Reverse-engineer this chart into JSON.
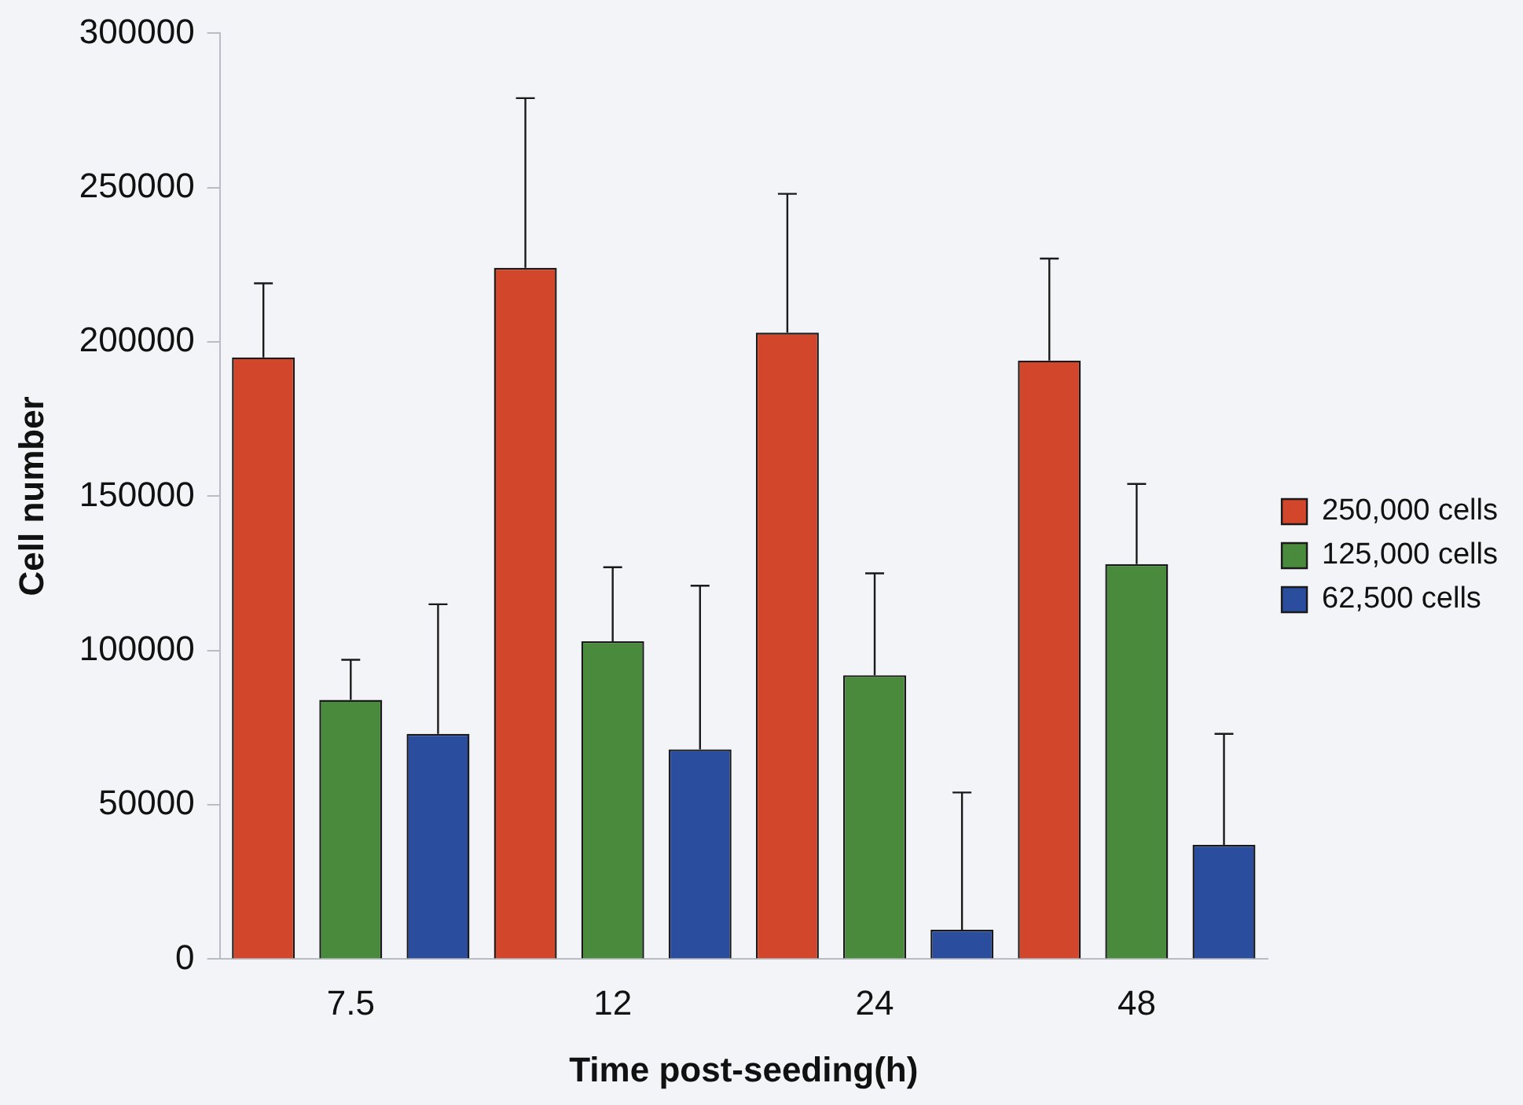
{
  "chart_data": {
    "type": "bar",
    "xlabel": "Time post-seeding(h)",
    "ylabel": "Cell number",
    "categories": [
      "7.5",
      "12",
      "24",
      "48"
    ],
    "series": [
      {
        "name": "250,000 cells",
        "color": "#d2472c",
        "values": [
          195000,
          224000,
          203000,
          194000
        ],
        "errors": [
          [
            195000,
            219000
          ],
          [
            224000,
            279000
          ],
          [
            203000,
            248000
          ],
          [
            194000,
            227000
          ]
        ]
      },
      {
        "name": "125,000 cells",
        "color": "#4a8a3c",
        "values": [
          84000,
          103000,
          92000,
          128000
        ],
        "errors": [
          [
            84000,
            97000
          ],
          [
            103000,
            127000
          ],
          [
            92000,
            125000
          ],
          [
            128000,
            154000
          ]
        ]
      },
      {
        "name": "62,500 cells",
        "color": "#2a4d9e",
        "values": [
          73000,
          68000,
          9500,
          37000
        ],
        "errors": [
          [
            73000,
            115000
          ],
          [
            68000,
            121000
          ],
          [
            9500,
            54000
          ],
          [
            37000,
            73000
          ]
        ]
      }
    ],
    "ylim": [
      0,
      300000
    ],
    "yticks": [
      0,
      50000,
      100000,
      150000,
      200000,
      250000,
      300000
    ],
    "grid": false,
    "legend": "right"
  }
}
